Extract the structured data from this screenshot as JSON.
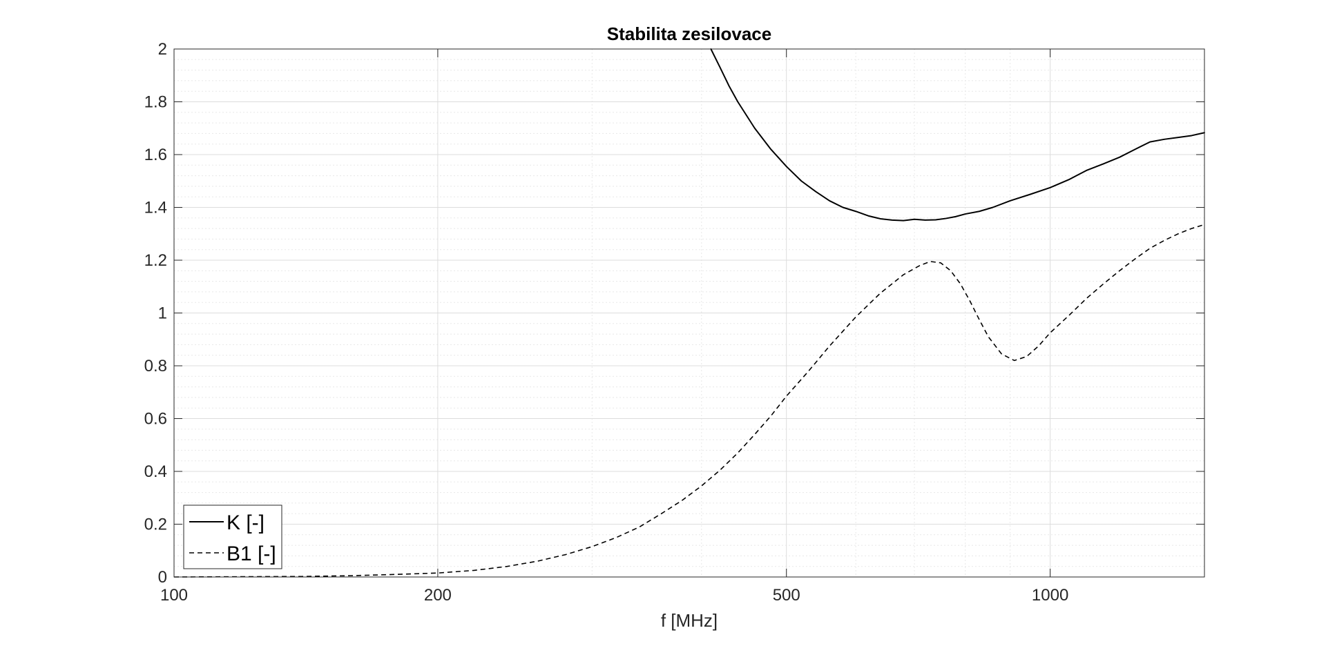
{
  "chart_data": {
    "type": "line",
    "title": "Stabilita zesilovace",
    "xlabel": "f [MHz]",
    "ylabel": "",
    "xscale": "log",
    "xlim": [
      100,
      1500
    ],
    "ylim": [
      0,
      2
    ],
    "xticks": [
      100,
      200,
      500,
      1000
    ],
    "xtick_labels": [
      "100",
      "200",
      "500",
      "1000"
    ],
    "yticks": [
      0,
      0.2,
      0.4,
      0.6,
      0.8,
      1,
      1.2,
      1.4,
      1.6,
      1.8,
      2
    ],
    "ytick_labels": [
      "0",
      "0.2",
      "0.4",
      "0.6",
      "0.8",
      "1",
      "1.2",
      "1.4",
      "1.6",
      "1.8",
      "2"
    ],
    "grid": true,
    "minor_grid": true,
    "legend_location": "bottom-left",
    "series": [
      {
        "name": "K [-]",
        "style": "solid",
        "color": "#000000",
        "x": [
          410,
          420,
          430,
          440,
          460,
          480,
          500,
          520,
          540,
          560,
          580,
          600,
          620,
          640,
          660,
          680,
          700,
          720,
          740,
          760,
          780,
          800,
          830,
          860,
          900,
          950,
          1000,
          1050,
          1100,
          1150,
          1200,
          1250,
          1300,
          1350,
          1400,
          1450,
          1500
        ],
        "y": [
          2.0,
          1.93,
          1.86,
          1.8,
          1.7,
          1.62,
          1.555,
          1.5,
          1.46,
          1.425,
          1.4,
          1.385,
          1.368,
          1.357,
          1.352,
          1.35,
          1.355,
          1.352,
          1.353,
          1.358,
          1.365,
          1.375,
          1.385,
          1.4,
          1.425,
          1.45,
          1.475,
          1.505,
          1.54,
          1.565,
          1.59,
          1.62,
          1.648,
          1.658,
          1.665,
          1.672,
          1.683
        ]
      },
      {
        "name": "B1 [-]",
        "style": "dashed",
        "color": "#000000",
        "x": [
          100,
          140,
          160,
          180,
          200,
          220,
          240,
          260,
          280,
          300,
          320,
          340,
          360,
          380,
          400,
          420,
          440,
          460,
          480,
          500,
          530,
          560,
          600,
          640,
          680,
          710,
          730,
          750,
          770,
          790,
          810,
          830,
          850,
          880,
          910,
          940,
          970,
          1000,
          1050,
          1100,
          1150,
          1200,
          1250,
          1300,
          1350,
          1400,
          1450,
          1500
        ],
        "y": [
          0.0,
          0.002,
          0.005,
          0.01,
          0.015,
          0.025,
          0.04,
          0.06,
          0.085,
          0.115,
          0.15,
          0.19,
          0.24,
          0.29,
          0.345,
          0.405,
          0.47,
          0.54,
          0.61,
          0.685,
          0.78,
          0.875,
          0.985,
          1.075,
          1.145,
          1.18,
          1.195,
          1.19,
          1.16,
          1.11,
          1.045,
          0.975,
          0.91,
          0.845,
          0.82,
          0.835,
          0.875,
          0.925,
          0.99,
          1.055,
          1.11,
          1.16,
          1.205,
          1.245,
          1.275,
          1.3,
          1.32,
          1.335
        ]
      }
    ]
  }
}
